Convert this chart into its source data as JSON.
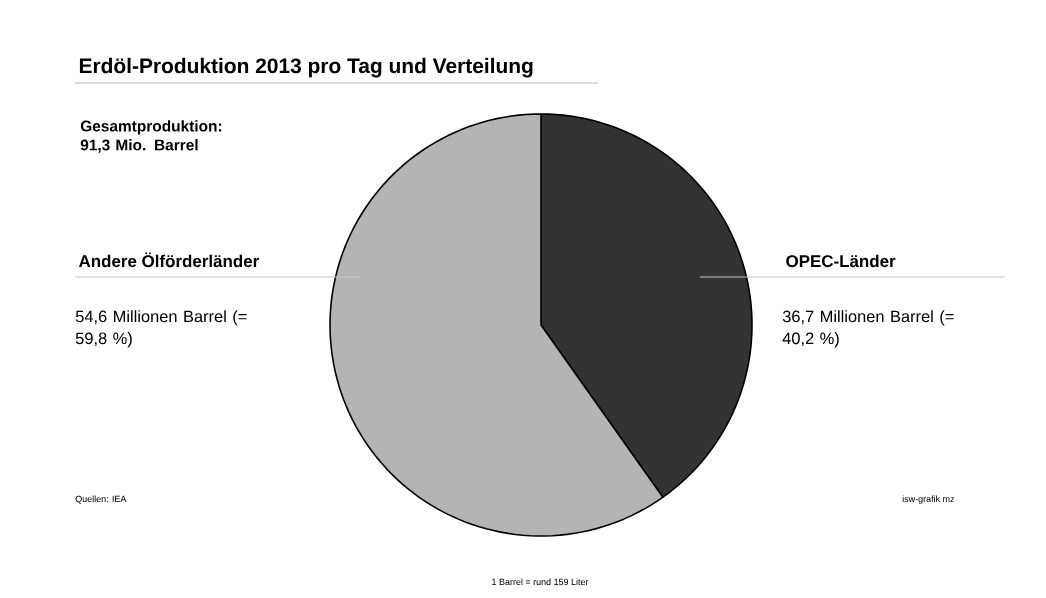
{
  "chart_data": {
    "type": "pie",
    "title": "Erdöl-Produktion 2013 pro Tag und Verteilung",
    "subtitle": "Gesamtproduktion: 91,3 Mio. Barrel",
    "categories": [
      "OPEC-Länder",
      "Andere Ölförderländer"
    ],
    "values": [
      36.7,
      54.6
    ],
    "colors": [
      "#333333",
      "#b4b4b4"
    ],
    "value_labels": [
      "36,7 Millionen Barrel (= 40,2 %)",
      "54,6 Millionen Barrel (= 59,8 %)"
    ],
    "annotations": [
      "Quellen: IEA",
      "isw-grafik mz",
      "1 Barrel = rund 159 Liter"
    ]
  }
}
